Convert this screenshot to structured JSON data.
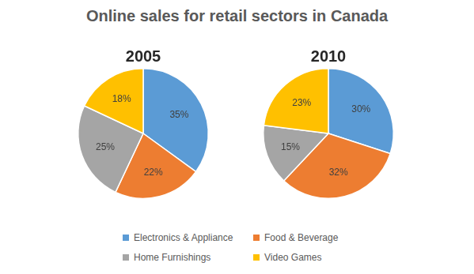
{
  "chart_data": {
    "type": "pie",
    "title": "Online sales for retail sectors in Canada",
    "categories": [
      "Electronics & Appliance",
      "Food & Beverage",
      "Home Furnishings",
      "Video Games"
    ],
    "colors": [
      "#5b9bd5",
      "#ed7d31",
      "#a5a5a5",
      "#ffc000"
    ],
    "series": [
      {
        "name": "2005",
        "values": [
          35,
          22,
          25,
          18
        ],
        "value_labels": [
          "35%",
          "22%",
          "25%",
          "18%"
        ]
      },
      {
        "name": "2010",
        "values": [
          30,
          32,
          15,
          23
        ],
        "value_labels": [
          "30%",
          "32%",
          "15%",
          "23%"
        ]
      }
    ],
    "data_labels": true,
    "legend": "bottom"
  }
}
